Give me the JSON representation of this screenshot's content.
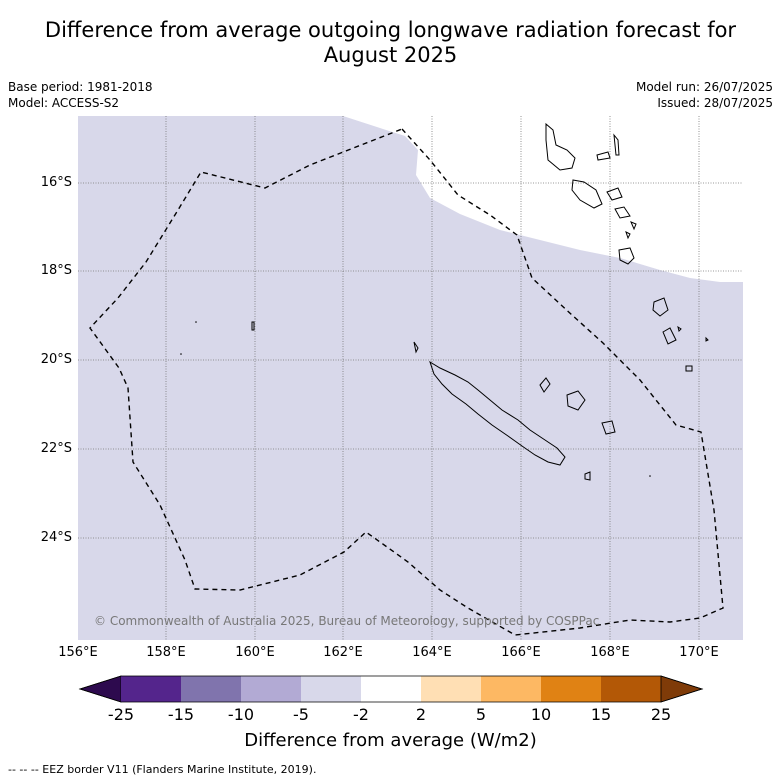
{
  "title_line1": "Difference from average outgoing longwave radiation forecast for",
  "title_line2": "August 2025",
  "meta_left": {
    "base_period": "Base period: 1981-2018",
    "model": "Model: ACCESS-S2"
  },
  "meta_right": {
    "model_run": "Model run: 26/07/2025",
    "issued": "Issued: 28/07/2025"
  },
  "copyright": "© Commonwealth of Australia 2025, Bureau of Meteorology, supported by COSPPac",
  "lat_labels": [
    "16°S",
    "18°S",
    "20°S",
    "22°S",
    "24°S"
  ],
  "lon_labels": [
    "156°E",
    "158°E",
    "160°E",
    "162°E",
    "164°E",
    "166°E",
    "168°E",
    "170°E"
  ],
  "colorbar": {
    "ticks": [
      "-25",
      "-15",
      "-10",
      "-5",
      "-2",
      "2",
      "5",
      "10",
      "15",
      "25"
    ],
    "colors": [
      "#2d0a4e",
      "#54258c",
      "#8074ad",
      "#b2aad4",
      "#d8d8ea",
      "#ffffff",
      "#ffdfb4",
      "#fdb863",
      "#e08214",
      "#b35806",
      "#7f3b08"
    ],
    "label": "Difference from average (W/m2)"
  },
  "footer": "--  --  -- EEZ border V11 (Flanders Marine Institute, 2019)."
}
